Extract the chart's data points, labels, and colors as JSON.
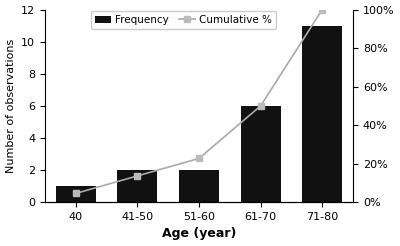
{
  "categories": [
    "40",
    "41-50",
    "51-60",
    "61-70",
    "71-80"
  ],
  "frequencies": [
    1,
    2,
    2,
    6,
    11
  ],
  "cumulative_pct": [
    4.545,
    13.636,
    22.727,
    50.0,
    100.0
  ],
  "bar_color": "#111111",
  "line_color": "#aaaaaa",
  "marker_color": "#bbbbbb",
  "xlabel": "Age (year)",
  "ylabel_left": "Number of observations",
  "legend_freq": "Frequency",
  "legend_cum": "Cumulative %",
  "ylim_left": [
    0,
    12
  ],
  "ylim_right": [
    0,
    100
  ],
  "yticks_left": [
    0,
    2,
    4,
    6,
    8,
    10,
    12
  ],
  "yticks_right": [
    0,
    20,
    40,
    60,
    80,
    100
  ],
  "background_color": "#ffffff"
}
